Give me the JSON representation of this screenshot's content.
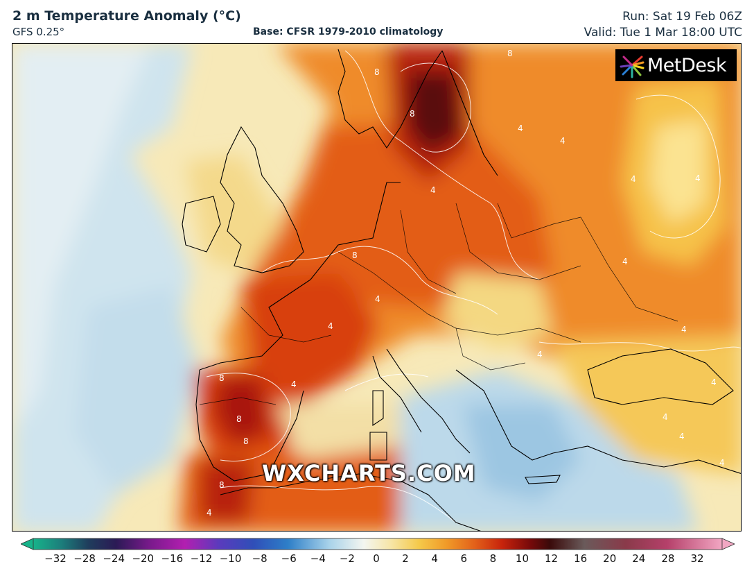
{
  "header": {
    "title": "2 m Temperature Anomaly (°C)",
    "model": "GFS 0.25°",
    "base": "Base: CFSR 1979-2010 climatology",
    "run": "Run: Sat 19 Feb 06Z",
    "valid": "Valid: Tue 1 Mar 18:00 UTC"
  },
  "logo": {
    "text": "MetDesk"
  },
  "watermark": {
    "text": "WXCHARTS.COM"
  },
  "contour_labels": {
    "four": "4",
    "eight": "8"
  },
  "colorbar": {
    "unit": "°C",
    "ticks": [
      "−32",
      "−28",
      "−24",
      "−20",
      "−16",
      "−12",
      "−10",
      "−8",
      "−6",
      "−4",
      "−2",
      "0",
      "2",
      "4",
      "6",
      "8",
      "10",
      "12",
      "16",
      "20",
      "24",
      "28",
      "32"
    ],
    "colors": {
      "min": "#17b38a",
      "neg_deep": "#2b1a55",
      "neg_purple": "#8a1a8c",
      "neg_blue": "#3a4fb8",
      "neg_light": "#a9d3ea",
      "zero": "#f4f6f0",
      "pos_yellow": "#f5d25a",
      "pos_orange": "#ec7a1c",
      "pos_red": "#c8240c",
      "pos_dark": "#3a0a0a",
      "max": "#f2a7c3"
    }
  }
}
